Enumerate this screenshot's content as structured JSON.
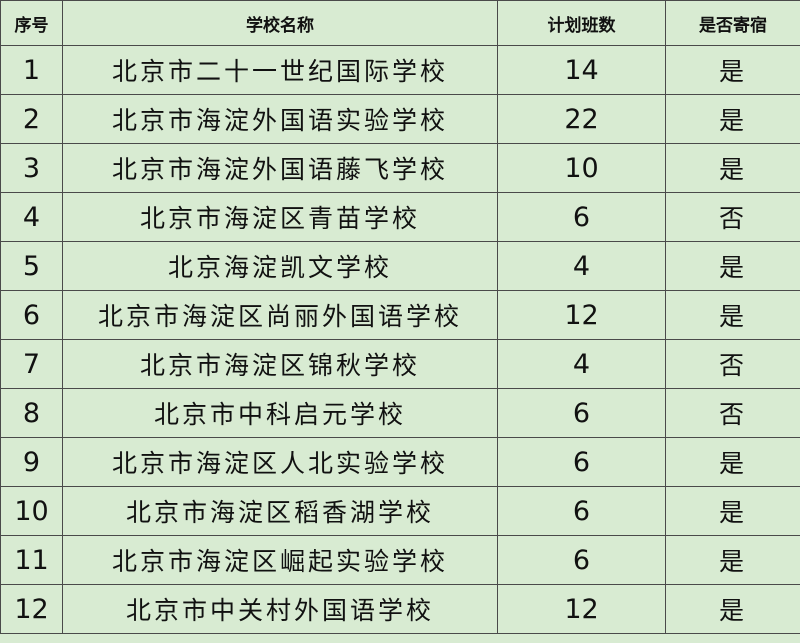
{
  "table": {
    "header": [
      "序号",
      "学校名称",
      "计划班数",
      "是否寄宿"
    ],
    "rows": [
      [
        "1",
        "北京市二十一世纪国际学校",
        "14",
        "是"
      ],
      [
        "2",
        "北京市海淀外国语实验学校",
        "22",
        "是"
      ],
      [
        "3",
        "北京市海淀外国语藤飞学校",
        "10",
        "是"
      ],
      [
        "4",
        "北京市海淀区青苗学校",
        "6",
        "否"
      ],
      [
        "5",
        "北京海淀凯文学校",
        "4",
        "是"
      ],
      [
        "6",
        "北京市海淀区尚丽外国语学校",
        "12",
        "是"
      ],
      [
        "7",
        "北京市海淀区锦秋学校",
        "4",
        "否"
      ],
      [
        "8",
        "北京市中科启元学校",
        "6",
        "否"
      ],
      [
        "9",
        "北京市海淀区人北实验学校",
        "6",
        "是"
      ],
      [
        "10",
        "北京市海淀区稻香湖学校",
        "6",
        "是"
      ],
      [
        "11",
        "北京市海淀区崛起实验学校",
        "6",
        "是"
      ],
      [
        "12",
        "北京市中关村外国语学校",
        "12",
        "是"
      ]
    ]
  }
}
